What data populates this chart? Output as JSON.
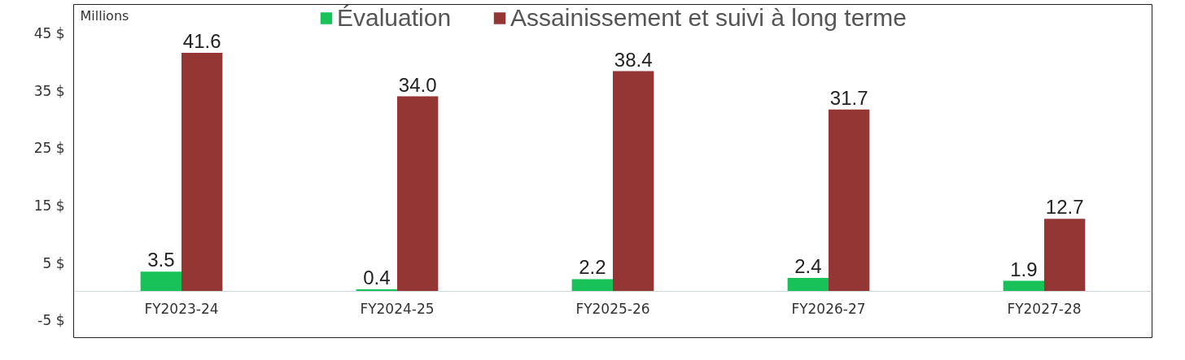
{
  "chart_data": {
    "type": "bar",
    "ylabel": "Millions",
    "categories": [
      "FY2023-24",
      "FY2024-25",
      "FY2025-26",
      "FY2026-27",
      "FY2027-28"
    ],
    "series": [
      {
        "name": "Évaluation",
        "color": "#19c159",
        "values": [
          3.5,
          0.4,
          2.2,
          2.4,
          1.9
        ],
        "value_labels": [
          "3.5",
          "0.4",
          "2.2",
          "2.4",
          "1.9"
        ]
      },
      {
        "name": "Assainissement et suivi à long terme",
        "color": "#943634",
        "values": [
          41.6,
          34.0,
          38.4,
          31.7,
          12.7
        ],
        "value_labels": [
          "41.6",
          "34.0",
          "38.4",
          "31.7",
          "12.7"
        ]
      }
    ],
    "ylim": [
      -8,
      50
    ],
    "yticks": [
      {
        "value": -5,
        "label": "-5 $"
      },
      {
        "value": 5,
        "label": "5 $"
      },
      {
        "value": 15,
        "label": "15 $"
      },
      {
        "value": 25,
        "label": "25 $"
      },
      {
        "value": 35,
        "label": "35 $"
      },
      {
        "value": 45,
        "label": "45 $"
      }
    ],
    "legend": "top",
    "grid": false
  }
}
